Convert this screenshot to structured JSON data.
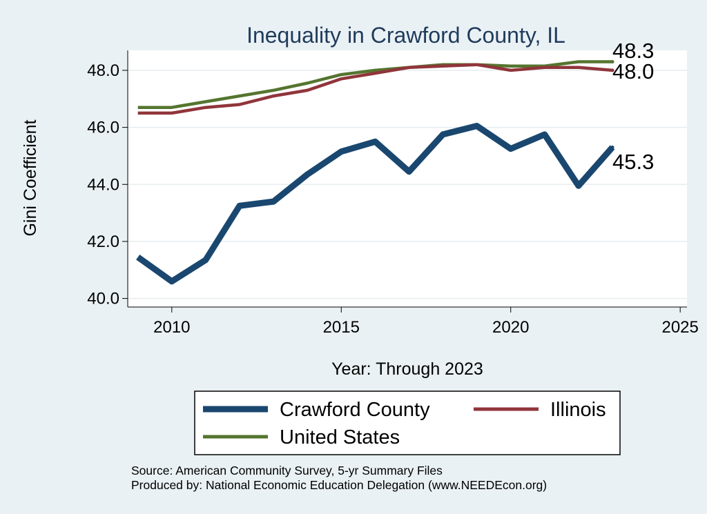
{
  "chart_data": {
    "type": "line",
    "title": "Inequality in Crawford County, IL",
    "xlabel": "Year: Through 2023",
    "ylabel": "Gini Coefficient",
    "xlim": [
      2008.7,
      2025.2
    ],
    "ylim": [
      39.7,
      48.7
    ],
    "xticks": [
      2010,
      2015,
      2020,
      2025
    ],
    "yticks": [
      40.0,
      42.0,
      44.0,
      46.0,
      48.0
    ],
    "xtick_labels": [
      "2010",
      "2015",
      "2020",
      "2025"
    ],
    "ytick_labels": [
      "40.0",
      "42.0",
      "44.0",
      "46.0",
      "48.0"
    ],
    "grid": true,
    "legend_position": "bottom",
    "x": [
      2009,
      2010,
      2011,
      2012,
      2013,
      2014,
      2015,
      2016,
      2017,
      2018,
      2019,
      2020,
      2021,
      2022,
      2023
    ],
    "series": [
      {
        "name": "Crawford County",
        "color": "#1a476f",
        "end_label": "45.3",
        "values": [
          41.45,
          40.6,
          41.35,
          43.25,
          43.4,
          44.35,
          45.15,
          45.5,
          44.45,
          45.75,
          46.05,
          45.25,
          45.75,
          43.95,
          45.3
        ]
      },
      {
        "name": "Illinois",
        "color": "#90353b",
        "end_label": "48.0",
        "values": [
          46.5,
          46.5,
          46.7,
          46.8,
          47.1,
          47.3,
          47.7,
          47.9,
          48.1,
          48.15,
          48.2,
          48.0,
          48.1,
          48.1,
          48.0
        ]
      },
      {
        "name": "United States",
        "color": "#55752f",
        "end_label": "48.3",
        "values": [
          46.7,
          46.7,
          46.9,
          47.1,
          47.3,
          47.55,
          47.85,
          48.0,
          48.1,
          48.2,
          48.2,
          48.15,
          48.15,
          48.3,
          48.3
        ]
      }
    ]
  },
  "source": {
    "line1": "Source: American Community Survey, 5-yr Summary Files",
    "line2": "Produced by: National Economic Education Delegation (www.NEEDEcon.org)"
  }
}
